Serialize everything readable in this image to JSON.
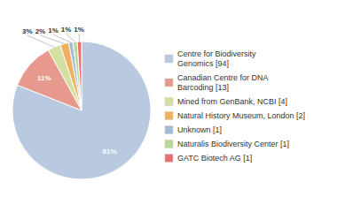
{
  "chart_data": {
    "type": "pie",
    "categories": [
      "Centre for Biodiversity\nGenomics [94]",
      "Canadian Centre for DNA\nBarcoding [13]",
      "Mined from GenBank, NCBI [4]",
      "Natural History Museum, London [2]",
      "Unknown [1]",
      "Naturalis Biodiversity Center [1]",
      "GATC Biotech AG [1]"
    ],
    "values": [
      81,
      11,
      3,
      2,
      1,
      1,
      1
    ],
    "value_labels": [
      "81%",
      "11%",
      "3%",
      "2%",
      "1%",
      "1%",
      "1%"
    ],
    "colors": [
      "#b8c9e0",
      "#e8998d",
      "#d4e0a0",
      "#f0b060",
      "#a0bcd8",
      "#b8d898",
      "#e87070"
    ],
    "data_labels": true,
    "legend": "right"
  }
}
